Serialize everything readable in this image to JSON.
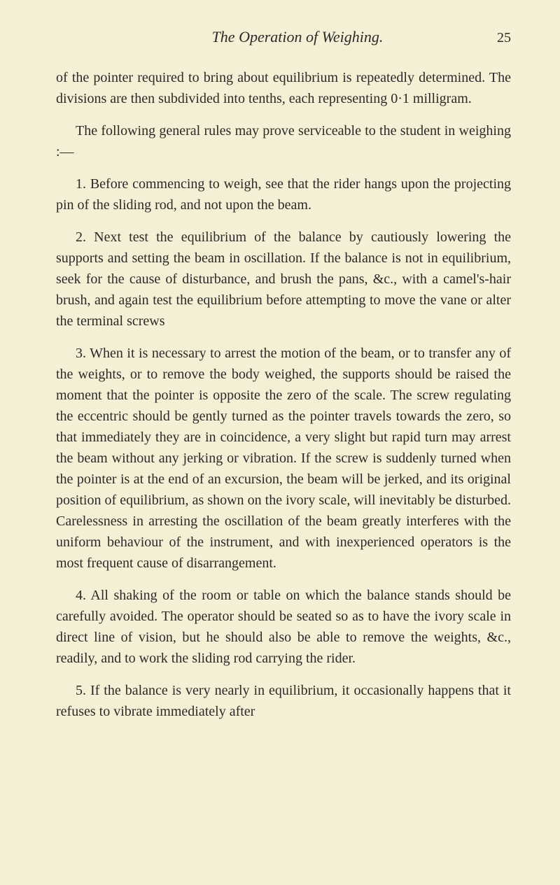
{
  "header": {
    "title": "The Operation of Weighing.",
    "pageNumber": "25"
  },
  "paragraphs": {
    "p1": "of the pointer required to bring about equilibrium is repeatedly determined. The divisions are then subdivided into tenths, each representing 0·1 milligram.",
    "p2": "The following general rules may prove serviceable to the student in weighing :—",
    "p3": "1. Before commencing to weigh, see that the rider hangs upon the projecting pin of the sliding rod, and not upon the beam.",
    "p4": "2. Next test the equilibrium of the balance by cautiously lowering the supports and setting the beam in oscillation. If the balance is not in equilibrium, seek for the cause of disturbance, and brush the pans, &c., with a camel's-hair brush, and again test the equilibrium before attempting to move the vane or alter the terminal screws",
    "p5": "3. When it is necessary to arrest the motion of the beam, or to transfer any of the weights, or to remove the body weighed, the supports should be raised the moment that the pointer is opposite the zero of the scale. The screw regulating the eccentric should be gently turned as the pointer travels towards the zero, so that immediately they are in coincidence, a very slight but rapid turn may arrest the beam without any jerking or vibration. If the screw is suddenly turned when the pointer is at the end of an excursion, the beam will be jerked, and its original position of equilibrium, as shown on the ivory scale, will inevitably be disturbed. Carelessness in arresting the oscillation of the beam greatly interferes with the uniform behaviour of the instrument, and with inexperienced operators is the most frequent cause of disarrangement.",
    "p6": "4. All shaking of the room or table on which the balance stands should be carefully avoided. The operator should be seated so as to have the ivory scale in direct line of vision, but he should also be able to remove the weights, &c., readily, and to work the sliding rod carrying the rider.",
    "p7": "5. If the balance is very nearly in equilibrium, it occasionally happens that it refuses to vibrate immediately after"
  }
}
